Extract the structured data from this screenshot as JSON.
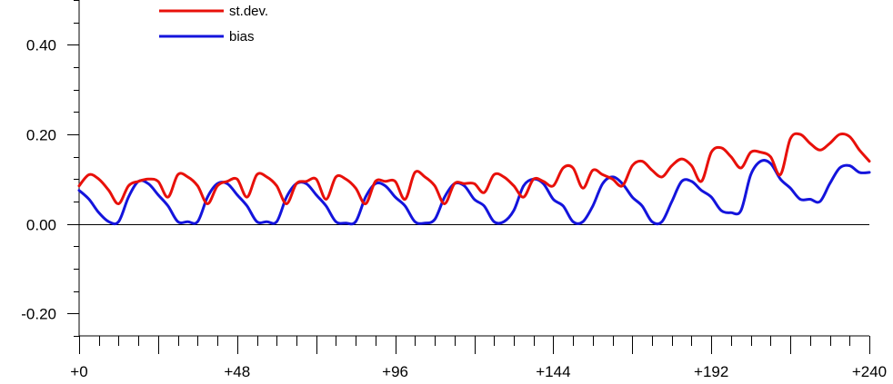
{
  "chart_data": {
    "type": "line",
    "title": "",
    "xlabel": "",
    "ylabel": "",
    "xlim": [
      0,
      240
    ],
    "ylim": [
      -0.25,
      0.5
    ],
    "x_ticks": [
      {
        "value": 0,
        "label": "+0"
      },
      {
        "value": 48,
        "label": "+48"
      },
      {
        "value": 96,
        "label": "+96"
      },
      {
        "value": 144,
        "label": "+144"
      },
      {
        "value": 192,
        "label": "+192"
      },
      {
        "value": 240,
        "label": "+240"
      }
    ],
    "y_ticks": [
      {
        "value": 0.4,
        "label": "0.40"
      },
      {
        "value": 0.2,
        "label": "0.20"
      },
      {
        "value": 0.0,
        "label": "0.00"
      },
      {
        "value": -0.2,
        "label": "-0.20"
      }
    ],
    "x_minor_step": 6,
    "y_minor_step": 0.05,
    "zero_line": true,
    "legend_position": "top-left",
    "series": [
      {
        "name": "st.dev.",
        "color": "#e8100a",
        "x": [
          0,
          3,
          6,
          9,
          12,
          15,
          18,
          21,
          24,
          27,
          30,
          33,
          36,
          39,
          42,
          45,
          48,
          51,
          54,
          57,
          60,
          63,
          66,
          69,
          72,
          75,
          78,
          81,
          84,
          87,
          90,
          93,
          96,
          99,
          102,
          105,
          108,
          111,
          114,
          117,
          120,
          123,
          126,
          129,
          132,
          135,
          138,
          141,
          144,
          147,
          150,
          153,
          156,
          159,
          162,
          165,
          168,
          171,
          174,
          177,
          180,
          183,
          186,
          189,
          192,
          195,
          198,
          201,
          204,
          207,
          210,
          213,
          216,
          219,
          222,
          225,
          228,
          231,
          234,
          237,
          240
        ],
        "values": [
          0.085,
          0.11,
          0.1,
          0.075,
          0.045,
          0.085,
          0.095,
          0.1,
          0.095,
          0.06,
          0.11,
          0.105,
          0.085,
          0.045,
          0.085,
          0.095,
          0.1,
          0.06,
          0.11,
          0.105,
          0.085,
          0.045,
          0.09,
          0.095,
          0.1,
          0.055,
          0.105,
          0.1,
          0.08,
          0.045,
          0.095,
          0.095,
          0.095,
          0.055,
          0.115,
          0.105,
          0.085,
          0.045,
          0.09,
          0.09,
          0.09,
          0.07,
          0.11,
          0.105,
          0.085,
          0.06,
          0.1,
          0.095,
          0.085,
          0.125,
          0.125,
          0.08,
          0.12,
          0.11,
          0.1,
          0.085,
          0.13,
          0.14,
          0.12,
          0.105,
          0.13,
          0.145,
          0.13,
          0.095,
          0.16,
          0.17,
          0.15,
          0.125,
          0.16,
          0.16,
          0.15,
          0.11,
          0.19,
          0.2,
          0.18,
          0.165,
          0.18,
          0.2,
          0.195,
          0.165,
          0.14
        ]
      },
      {
        "name": "bias",
        "color": "#1414dc",
        "x": [
          0,
          3,
          6,
          9,
          12,
          15,
          18,
          21,
          24,
          27,
          30,
          33,
          36,
          39,
          42,
          45,
          48,
          51,
          54,
          57,
          60,
          63,
          66,
          69,
          72,
          75,
          78,
          81,
          84,
          87,
          90,
          93,
          96,
          99,
          102,
          105,
          108,
          111,
          114,
          117,
          120,
          123,
          126,
          129,
          132,
          135,
          138,
          141,
          144,
          147,
          150,
          153,
          156,
          159,
          162,
          165,
          168,
          171,
          174,
          177,
          180,
          183,
          186,
          189,
          192,
          195,
          198,
          201,
          204,
          207,
          210,
          213,
          216,
          219,
          222,
          225,
          228,
          231,
          234,
          237,
          240
        ],
        "values": [
          0.075,
          0.055,
          0.025,
          0.005,
          0.005,
          0.06,
          0.095,
          0.09,
          0.065,
          0.04,
          0.005,
          0.005,
          0.005,
          0.06,
          0.09,
          0.09,
          0.065,
          0.04,
          0.005,
          0.005,
          0.005,
          0.06,
          0.09,
          0.09,
          0.065,
          0.04,
          0.005,
          0.002,
          0.005,
          0.06,
          0.09,
          0.085,
          0.06,
          0.04,
          0.005,
          0.002,
          0.01,
          0.06,
          0.09,
          0.085,
          0.055,
          0.04,
          0.005,
          0.005,
          0.03,
          0.085,
          0.1,
          0.09,
          0.055,
          0.04,
          0.005,
          0.005,
          0.04,
          0.09,
          0.105,
          0.09,
          0.06,
          0.04,
          0.005,
          0.005,
          0.05,
          0.095,
          0.095,
          0.075,
          0.06,
          0.03,
          0.025,
          0.03,
          0.11,
          0.14,
          0.135,
          0.1,
          0.08,
          0.055,
          0.055,
          0.05,
          0.09,
          0.125,
          0.13,
          0.115,
          0.115
        ]
      }
    ]
  }
}
